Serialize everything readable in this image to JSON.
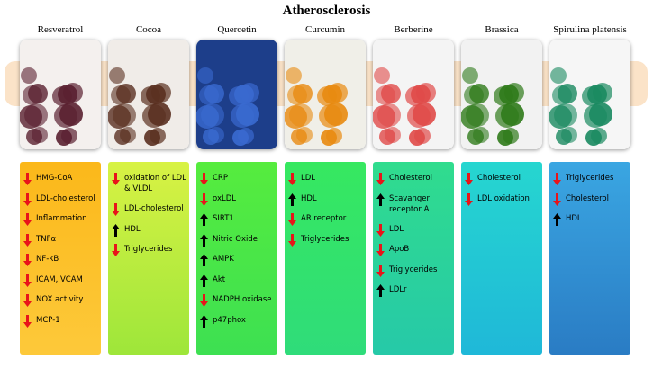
{
  "header": {
    "title": "Atherosclerosis"
  },
  "columns": [
    {
      "name": "Resveratrol",
      "items": [
        {
          "text": "HMG-CoA",
          "dir": "down"
        },
        {
          "text": "LDL-cholesterol",
          "dir": "down"
        },
        {
          "text": "Inflammation",
          "dir": "down"
        },
        {
          "text": "TNFα",
          "dir": "down"
        },
        {
          "text": "NF-κB",
          "dir": "down"
        },
        {
          "text": "ICAM, VCAM",
          "dir": "down"
        },
        {
          "text": "NOX activity",
          "dir": "down"
        },
        {
          "text": "MCP-1",
          "dir": "down"
        }
      ]
    },
    {
      "name": "Cocoa",
      "items": [
        {
          "text": "oxidation of LDL & VLDL",
          "dir": "down"
        },
        {
          "text": "LDL-cholesterol",
          "dir": "down"
        },
        {
          "text": "HDL",
          "dir": "up"
        },
        {
          "text": "Triglycerides",
          "dir": "down"
        }
      ]
    },
    {
      "name": "Quercetin",
      "items": [
        {
          "text": "CRP",
          "dir": "down"
        },
        {
          "text": "oxLDL",
          "dir": "down"
        },
        {
          "text": "SIRT1",
          "dir": "up"
        },
        {
          "text": "Nitric Oxide",
          "dir": "up"
        },
        {
          "text": "AMPK",
          "dir": "up"
        },
        {
          "text": "Akt",
          "dir": "up"
        },
        {
          "text": "NADPH oxidase",
          "dir": "down"
        },
        {
          "text": "p47phox",
          "dir": "up"
        }
      ]
    },
    {
      "name": "Curcumin",
      "items": [
        {
          "text": "LDL",
          "dir": "down"
        },
        {
          "text": "HDL",
          "dir": "up"
        },
        {
          "text": "AR receptor",
          "dir": "down"
        },
        {
          "text": "Triglycerides",
          "dir": "down"
        }
      ]
    },
    {
      "name": "Berberine",
      "items": [
        {
          "text": "Cholesterol",
          "dir": "down"
        },
        {
          "text": "Scavanger receptor A",
          "dir": "up"
        },
        {
          "text": "LDL",
          "dir": "down"
        },
        {
          "text": "ApoB",
          "dir": "down"
        },
        {
          "text": "Triglycerides",
          "dir": "down"
        },
        {
          "text": "LDLr",
          "dir": "up"
        }
      ]
    },
    {
      "name": "Brassica",
      "items": [
        {
          "text": "Cholesterol",
          "dir": "down"
        },
        {
          "text": "LDL oxidation",
          "dir": "down"
        }
      ]
    },
    {
      "name": "Spirulina platensis",
      "items": [
        {
          "text": "Triglycerides",
          "dir": "down"
        },
        {
          "text": "Cholesterol",
          "dir": "down"
        },
        {
          "text": "HDL",
          "dir": "up"
        }
      ]
    }
  ]
}
